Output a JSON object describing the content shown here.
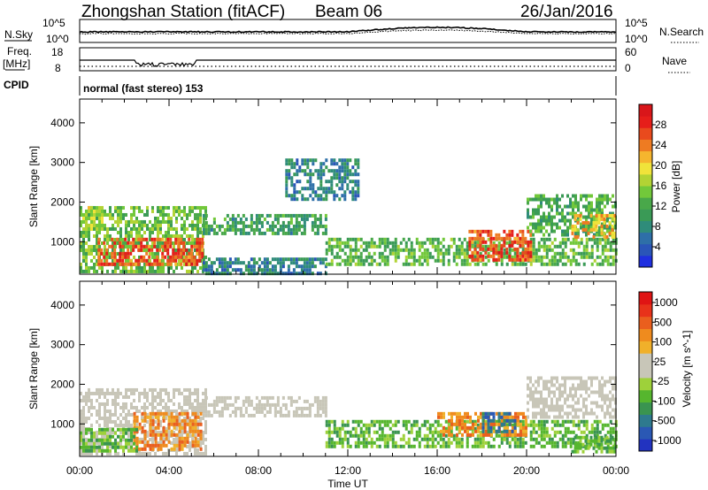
{
  "header": {
    "station": "Zhongshan Station (fitACF)",
    "beam": "Beam 06",
    "date": "26/Jan/2016"
  },
  "strips": {
    "nsky_label": "N.Sky",
    "nsky_ticks": [
      "10^5",
      "10^0"
    ],
    "nsearch_label": "N.Search",
    "nsearch_ticks": [
      "10^5",
      "10^0"
    ],
    "freq_label_1": "Freq.",
    "freq_label_2": "[MHz]",
    "freq_ticks": [
      "18",
      "8"
    ],
    "nave_label": "Nave",
    "nave_ticks": [
      "60",
      "0"
    ],
    "cpid_label": "CPID",
    "cpid_text": "normal (fast stereo) 153"
  },
  "chart_data": [
    {
      "type": "heatmap",
      "panel": "power",
      "ylabel": "Slant Range [km]",
      "y_ticks": [
        1000,
        2000,
        3000,
        4000
      ],
      "ylim": [
        180,
        4600
      ],
      "x_ticks": [
        "00:00",
        "04:00",
        "08:00",
        "12:00",
        "16:00",
        "20:00",
        "00:00"
      ],
      "xlim_hours": [
        0,
        24
      ],
      "colorbar": {
        "label": "Power [dB]",
        "ticks": [
          4,
          8,
          12,
          16,
          20,
          24,
          28
        ],
        "range": [
          0,
          32
        ],
        "colors": [
          "#1f2fe0",
          "#2a55b8",
          "#2e6fa8",
          "#2f8c7a",
          "#3a9a56",
          "#49a84a",
          "#72c83a",
          "#b2d334",
          "#f0e33a",
          "#f5b52e",
          "#ee7b22",
          "#e94a1d",
          "#e61e1a",
          "#d9161a"
        ]
      },
      "regions": [
        {
          "t": [
            0.0,
            5.6
          ],
          "r": [
            250,
            1900
          ],
          "level": 14
        },
        {
          "t": [
            0.8,
            5.5
          ],
          "r": [
            400,
            1100
          ],
          "level": 27
        },
        {
          "t": [
            0.0,
            1.0
          ],
          "r": [
            1300,
            1900
          ],
          "level": 18
        },
        {
          "t": [
            5.5,
            11.0
          ],
          "r": [
            1200,
            1700
          ],
          "level": 10
        },
        {
          "t": [
            5.5,
            11.0
          ],
          "r": [
            200,
            600
          ],
          "level": 7
        },
        {
          "t": [
            9.2,
            12.5
          ],
          "r": [
            2100,
            3100
          ],
          "level": 7
        },
        {
          "t": [
            11.0,
            24.0
          ],
          "r": [
            400,
            1100
          ],
          "level": 13
        },
        {
          "t": [
            17.4,
            20.2
          ],
          "r": [
            500,
            1300
          ],
          "level": 27
        },
        {
          "t": [
            20.0,
            24.0
          ],
          "r": [
            1200,
            2200
          ],
          "level": 12
        },
        {
          "t": [
            22.0,
            24.0
          ],
          "r": [
            1100,
            1700
          ],
          "level": 22
        }
      ]
    },
    {
      "type": "heatmap",
      "panel": "velocity",
      "ylabel": "Slant Range [km]",
      "y_ticks": [
        1000,
        2000,
        3000,
        4000
      ],
      "ylim": [
        180,
        4600
      ],
      "x_ticks": [
        "00:00",
        "04:00",
        "08:00",
        "12:00",
        "16:00",
        "20:00",
        "00:00"
      ],
      "xlabel": "Time UT",
      "xlim_hours": [
        0,
        24
      ],
      "colorbar": {
        "label": "Velocity [m s^-1]",
        "ticks": [
          1000,
          500,
          100,
          25,
          -25,
          -100,
          -500,
          -1000
        ],
        "colors": [
          "#2233c0",
          "#2a58b4",
          "#2e7a8e",
          "#3a9450",
          "#56b62e",
          "#9ed13a",
          "#c8c6b8",
          "#c8c6b8",
          "#f0b02a",
          "#ef8b1e",
          "#ea5f1e",
          "#e8321a",
          "#e01414"
        ]
      },
      "regions": [
        {
          "t": [
            0.0,
            5.6
          ],
          "r": [
            250,
            1900
          ],
          "level": "ground"
        },
        {
          "t": [
            2.4,
            5.4
          ],
          "r": [
            400,
            1300
          ],
          "level": "-100"
        },
        {
          "t": [
            0.0,
            2.5
          ],
          "r": [
            300,
            900
          ],
          "level": "100"
        },
        {
          "t": [
            5.5,
            11.0
          ],
          "r": [
            1200,
            1700
          ],
          "level": "ground"
        },
        {
          "t": [
            11.0,
            24.0
          ],
          "r": [
            400,
            1100
          ],
          "level": "100"
        },
        {
          "t": [
            16.0,
            20.0
          ],
          "r": [
            700,
            1300
          ],
          "level": "-100"
        },
        {
          "t": [
            18.0,
            19.5
          ],
          "r": [
            800,
            1300
          ],
          "level": "500"
        },
        {
          "t": [
            22.0,
            24.0
          ],
          "r": [
            300,
            700
          ],
          "level": "100"
        },
        {
          "t": [
            20.0,
            24.0
          ],
          "r": [
            1200,
            2200
          ],
          "level": "ground"
        }
      ]
    }
  ]
}
